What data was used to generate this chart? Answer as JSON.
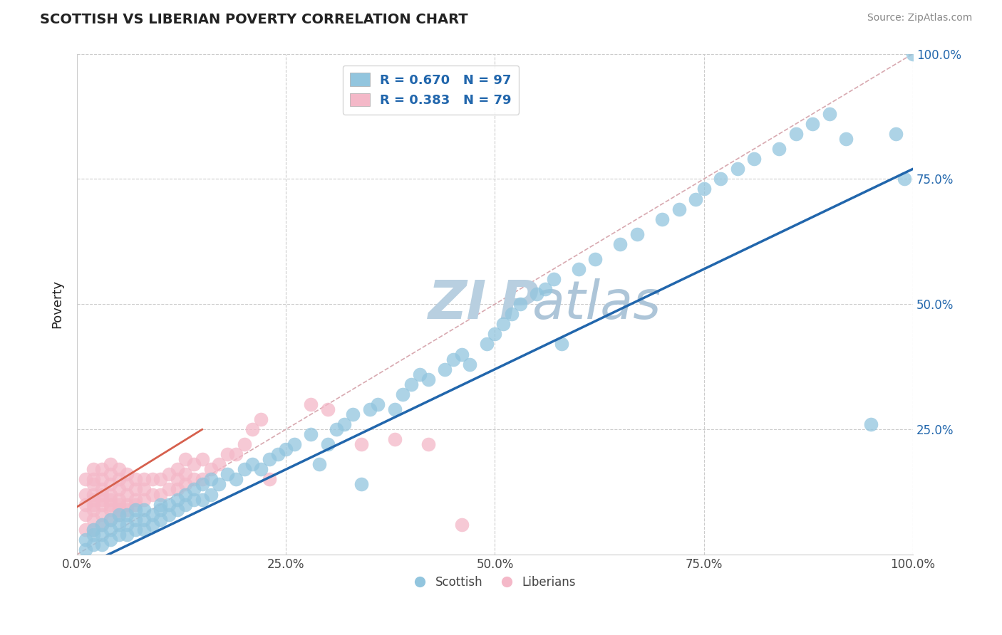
{
  "title": "SCOTTISH VS LIBERIAN POVERTY CORRELATION CHART",
  "source": "Source: ZipAtlas.com",
  "ylabel": "Poverty",
  "xlim": [
    0,
    1
  ],
  "ylim": [
    0,
    1
  ],
  "xticks": [
    0,
    0.25,
    0.5,
    0.75,
    1.0
  ],
  "yticks": [
    0.25,
    0.5,
    0.75,
    1.0
  ],
  "xticklabels": [
    "0.0%",
    "25.0%",
    "50.0%",
    "75.0%",
    "100.0%"
  ],
  "yticklabels_right": [
    "25.0%",
    "50.0%",
    "75.0%",
    "100.0%"
  ],
  "blue_R": 0.67,
  "blue_N": 97,
  "pink_R": 0.383,
  "pink_N": 79,
  "blue_color": "#92c5de",
  "pink_color": "#f4b8c8",
  "blue_line_color": "#2166ac",
  "pink_line_color": "#d6604d",
  "diag_line_color": "#d4a0a8",
  "grid_color": "#cccccc",
  "watermark_color": "#c8d8e8",
  "legend_text_color": "#2166ac",
  "background_color": "#ffffff",
  "blue_x": [
    0.01,
    0.01,
    0.02,
    0.02,
    0.02,
    0.03,
    0.03,
    0.03,
    0.04,
    0.04,
    0.04,
    0.05,
    0.05,
    0.05,
    0.06,
    0.06,
    0.06,
    0.07,
    0.07,
    0.07,
    0.08,
    0.08,
    0.08,
    0.09,
    0.09,
    0.1,
    0.1,
    0.1,
    0.11,
    0.11,
    0.12,
    0.12,
    0.13,
    0.13,
    0.14,
    0.14,
    0.15,
    0.15,
    0.16,
    0.16,
    0.17,
    0.18,
    0.19,
    0.2,
    0.21,
    0.22,
    0.23,
    0.24,
    0.25,
    0.26,
    0.28,
    0.29,
    0.3,
    0.31,
    0.32,
    0.33,
    0.34,
    0.35,
    0.36,
    0.38,
    0.39,
    0.4,
    0.41,
    0.42,
    0.44,
    0.45,
    0.46,
    0.47,
    0.49,
    0.5,
    0.51,
    0.52,
    0.53,
    0.55,
    0.56,
    0.57,
    0.58,
    0.6,
    0.62,
    0.65,
    0.67,
    0.7,
    0.72,
    0.74,
    0.75,
    0.77,
    0.79,
    0.81,
    0.84,
    0.86,
    0.88,
    0.9,
    0.92,
    0.95,
    0.98,
    0.99,
    1.0
  ],
  "blue_y": [
    0.01,
    0.03,
    0.02,
    0.04,
    0.05,
    0.02,
    0.04,
    0.06,
    0.03,
    0.05,
    0.07,
    0.04,
    0.06,
    0.08,
    0.04,
    0.06,
    0.08,
    0.05,
    0.07,
    0.09,
    0.05,
    0.07,
    0.09,
    0.06,
    0.08,
    0.07,
    0.09,
    0.1,
    0.08,
    0.1,
    0.09,
    0.11,
    0.1,
    0.12,
    0.11,
    0.13,
    0.11,
    0.14,
    0.12,
    0.15,
    0.14,
    0.16,
    0.15,
    0.17,
    0.18,
    0.17,
    0.19,
    0.2,
    0.21,
    0.22,
    0.24,
    0.18,
    0.22,
    0.25,
    0.26,
    0.28,
    0.14,
    0.29,
    0.3,
    0.29,
    0.32,
    0.34,
    0.36,
    0.35,
    0.37,
    0.39,
    0.4,
    0.38,
    0.42,
    0.44,
    0.46,
    0.48,
    0.5,
    0.52,
    0.53,
    0.55,
    0.42,
    0.57,
    0.59,
    0.62,
    0.64,
    0.67,
    0.69,
    0.71,
    0.73,
    0.75,
    0.77,
    0.79,
    0.81,
    0.84,
    0.86,
    0.88,
    0.83,
    0.26,
    0.84,
    0.75,
    1.0
  ],
  "pink_x": [
    0.01,
    0.01,
    0.01,
    0.01,
    0.01,
    0.02,
    0.02,
    0.02,
    0.02,
    0.02,
    0.02,
    0.02,
    0.02,
    0.02,
    0.03,
    0.03,
    0.03,
    0.03,
    0.03,
    0.03,
    0.03,
    0.03,
    0.04,
    0.04,
    0.04,
    0.04,
    0.04,
    0.04,
    0.04,
    0.04,
    0.05,
    0.05,
    0.05,
    0.05,
    0.05,
    0.05,
    0.05,
    0.06,
    0.06,
    0.06,
    0.06,
    0.06,
    0.07,
    0.07,
    0.07,
    0.07,
    0.08,
    0.08,
    0.08,
    0.09,
    0.09,
    0.1,
    0.1,
    0.11,
    0.11,
    0.12,
    0.12,
    0.12,
    0.13,
    0.13,
    0.13,
    0.14,
    0.14,
    0.15,
    0.15,
    0.16,
    0.17,
    0.18,
    0.19,
    0.2,
    0.21,
    0.22,
    0.23,
    0.28,
    0.3,
    0.34,
    0.38,
    0.42,
    0.46
  ],
  "pink_y": [
    0.05,
    0.08,
    0.1,
    0.12,
    0.15,
    0.05,
    0.07,
    0.09,
    0.1,
    0.11,
    0.12,
    0.14,
    0.15,
    0.17,
    0.06,
    0.08,
    0.1,
    0.11,
    0.12,
    0.13,
    0.15,
    0.17,
    0.07,
    0.09,
    0.1,
    0.11,
    0.12,
    0.14,
    0.16,
    0.18,
    0.08,
    0.09,
    0.1,
    0.11,
    0.13,
    0.15,
    0.17,
    0.09,
    0.1,
    0.12,
    0.14,
    0.16,
    0.1,
    0.11,
    0.13,
    0.15,
    0.11,
    0.13,
    0.15,
    0.12,
    0.15,
    0.12,
    0.15,
    0.13,
    0.16,
    0.13,
    0.15,
    0.17,
    0.14,
    0.16,
    0.19,
    0.15,
    0.18,
    0.15,
    0.19,
    0.17,
    0.18,
    0.2,
    0.2,
    0.22,
    0.25,
    0.27,
    0.15,
    0.3,
    0.29,
    0.22,
    0.23,
    0.22,
    0.06
  ],
  "blue_line_x": [
    0.0,
    1.0
  ],
  "blue_line_y": [
    -0.03,
    0.77
  ],
  "pink_line_x": [
    0.0,
    0.15
  ],
  "pink_line_y": [
    0.095,
    0.25
  ]
}
